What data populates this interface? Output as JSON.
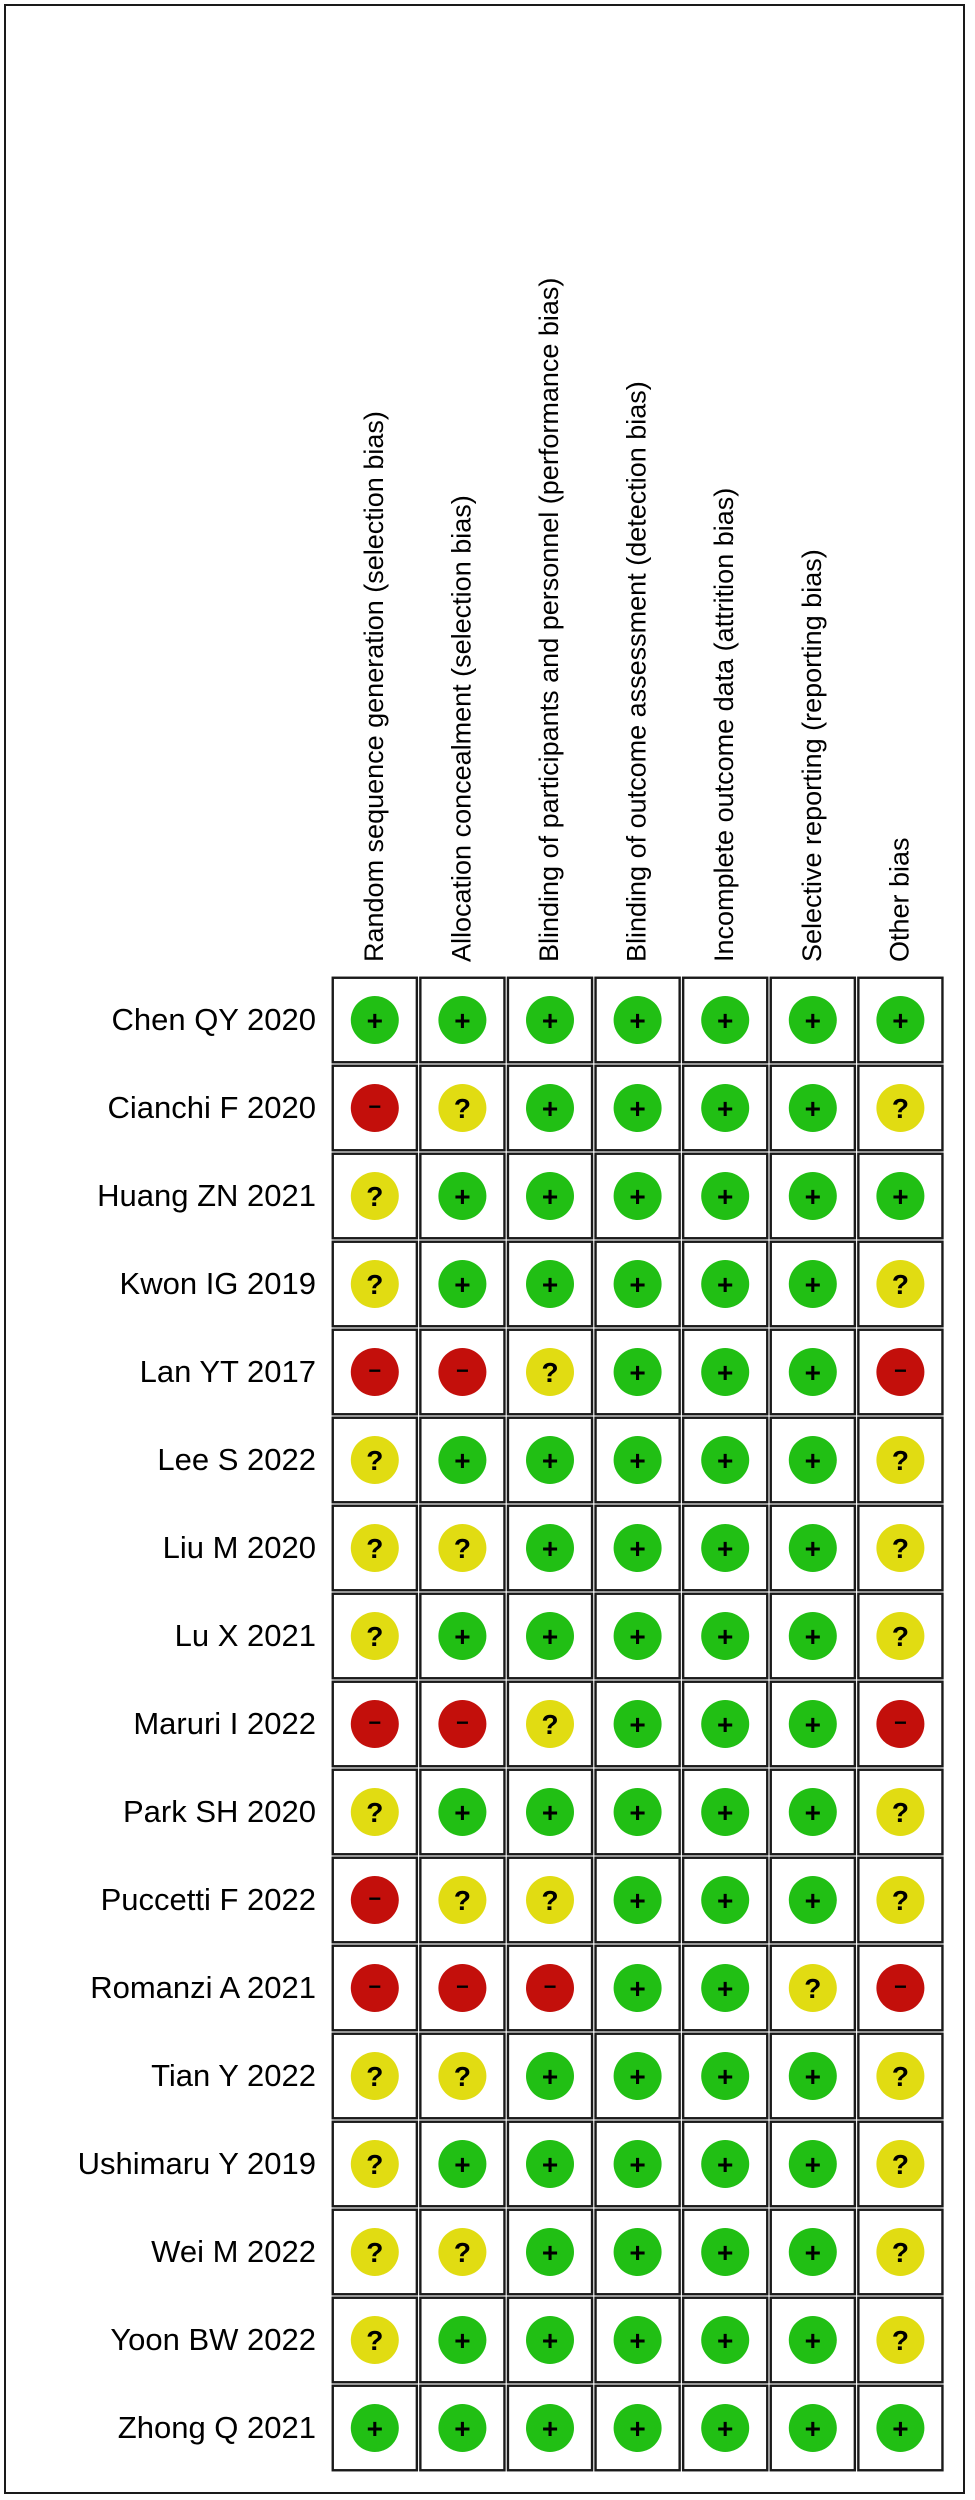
{
  "chart_data": {
    "type": "table",
    "title": "",
    "columns": [
      "Random sequence generation (selection bias)",
      "Allocation concealment (selection bias)",
      "Blinding of participants and personnel (performance bias)",
      "Blinding of outcome assessment (detection bias)",
      "Incomplete outcome data (attrition bias)",
      "Selective reporting (reporting bias)",
      "Other bias"
    ],
    "studies": [
      "Chen QY 2020",
      "Cianchi F 2020",
      "Huang ZN 2021",
      "Kwon IG 2019",
      "Lan YT 2017",
      "Lee S 2022",
      "Liu M 2020",
      "Lu X 2021",
      "Maruri I 2022",
      "Park SH 2020",
      "Puccetti F 2022",
      "Romanzi A 2021",
      "Tian Y 2022",
      "Ushimaru Y 2019",
      "Wei M 2022",
      "Yoon BW 2022",
      "Zhong Q 2021"
    ],
    "judgements": [
      [
        "low",
        "low",
        "low",
        "low",
        "low",
        "low",
        "low"
      ],
      [
        "high",
        "unclear",
        "low",
        "low",
        "low",
        "low",
        "unclear"
      ],
      [
        "unclear",
        "low",
        "low",
        "low",
        "low",
        "low",
        "low"
      ],
      [
        "unclear",
        "low",
        "low",
        "low",
        "low",
        "low",
        "unclear"
      ],
      [
        "high",
        "high",
        "unclear",
        "low",
        "low",
        "low",
        "high"
      ],
      [
        "unclear",
        "low",
        "low",
        "low",
        "low",
        "low",
        "unclear"
      ],
      [
        "unclear",
        "unclear",
        "low",
        "low",
        "low",
        "low",
        "unclear"
      ],
      [
        "unclear",
        "low",
        "low",
        "low",
        "low",
        "low",
        "unclear"
      ],
      [
        "high",
        "high",
        "unclear",
        "low",
        "low",
        "low",
        "high"
      ],
      [
        "unclear",
        "low",
        "low",
        "low",
        "low",
        "low",
        "unclear"
      ],
      [
        "high",
        "unclear",
        "unclear",
        "low",
        "low",
        "low",
        "unclear"
      ],
      [
        "high",
        "high",
        "high",
        "low",
        "low",
        "unclear",
        "high"
      ],
      [
        "unclear",
        "unclear",
        "low",
        "low",
        "low",
        "low",
        "unclear"
      ],
      [
        "unclear",
        "low",
        "low",
        "low",
        "low",
        "low",
        "unclear"
      ],
      [
        "unclear",
        "unclear",
        "low",
        "low",
        "low",
        "low",
        "unclear"
      ],
      [
        "unclear",
        "low",
        "low",
        "low",
        "low",
        "low",
        "unclear"
      ],
      [
        "low",
        "low",
        "low",
        "low",
        "low",
        "low",
        "low"
      ]
    ],
    "symbols": {
      "low": "+",
      "unclear": "?",
      "high": "−"
    },
    "colors": {
      "low": "#21bf14",
      "unclear": "#e1dc12",
      "high": "#c30f0b"
    }
  }
}
